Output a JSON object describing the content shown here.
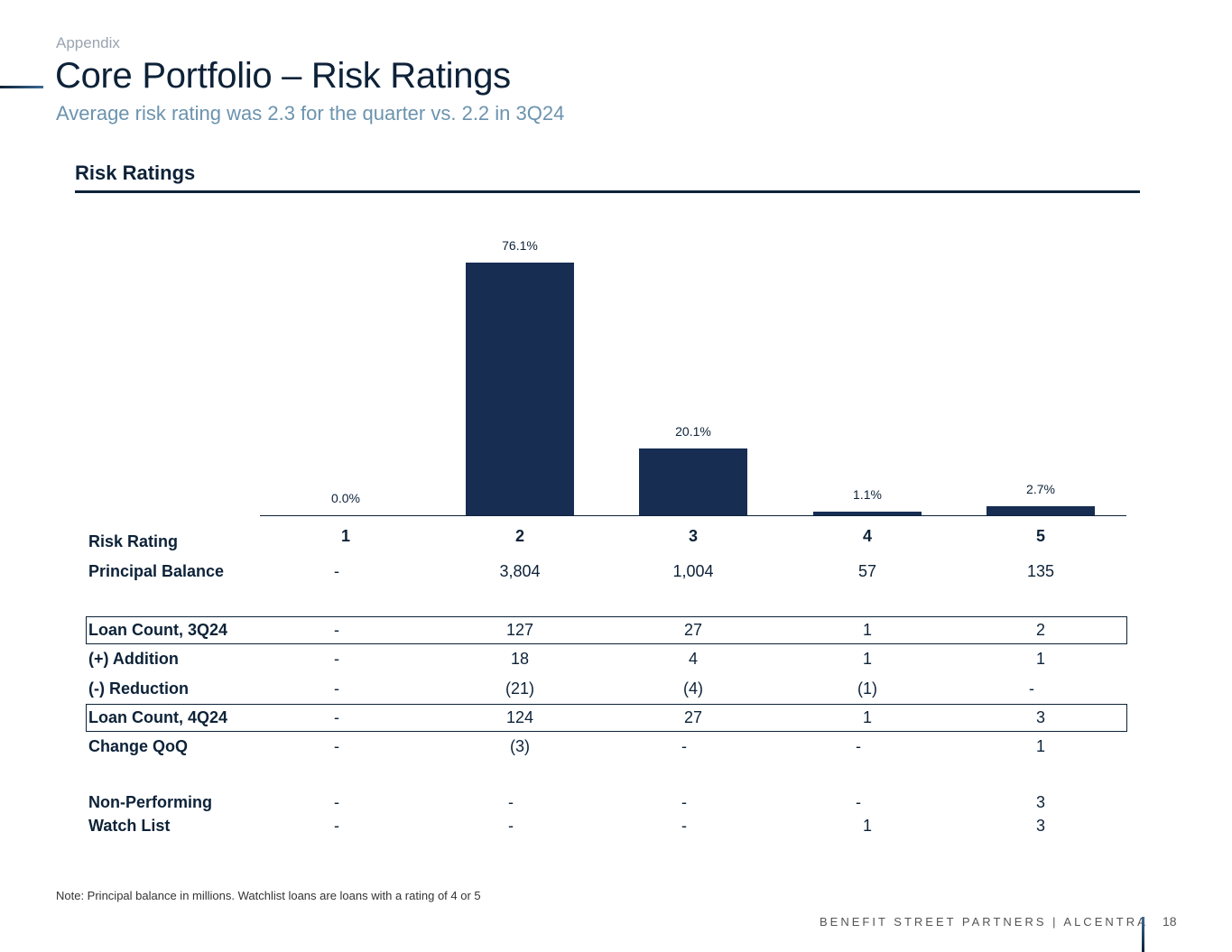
{
  "header": {
    "appendix": "Appendix",
    "title": "Core Portfolio – Risk Ratings",
    "subtitle": "Average risk rating was 2.3 for the quarter vs. 2.2 in 3Q24"
  },
  "section_title": "Risk Ratings",
  "chart_data": {
    "type": "bar",
    "title": "Risk Ratings",
    "categories": [
      "1",
      "2",
      "3",
      "4",
      "5"
    ],
    "values": [
      0.0,
      76.1,
      20.1,
      1.1,
      2.7
    ],
    "labels": [
      "0.0%",
      "76.1%",
      "20.1%",
      "1.1%",
      "2.7%"
    ],
    "unit": "%",
    "ylim": [
      0,
      80
    ],
    "colors": {
      "bar": "#172d52"
    }
  },
  "table": {
    "rows": [
      {
        "label": "Risk Rating",
        "values": [
          "1",
          "2",
          "3",
          "4",
          "5"
        ]
      },
      {
        "label": "Principal Balance",
        "values": [
          "-",
          "3,804",
          "1,004",
          "57",
          "135"
        ]
      },
      {
        "label": "Loan Count, 3Q24",
        "values": [
          "-",
          "127",
          "27",
          "1",
          "2"
        ]
      },
      {
        "label": "(+) Addition",
        "values": [
          "-",
          "18",
          "4",
          "1",
          "1"
        ]
      },
      {
        "label": "(-) Reduction",
        "values": [
          "-",
          "(21)",
          "(4)",
          "(1)",
          "-"
        ]
      },
      {
        "label": "Loan Count, 4Q24",
        "values": [
          "-",
          "124",
          "27",
          "1",
          "3"
        ]
      },
      {
        "label": "Change QoQ",
        "values": [
          "-",
          "(3)",
          "-",
          "-",
          "1"
        ]
      },
      {
        "label": "Non-Performing",
        "values": [
          "-",
          "-",
          "-",
          "-",
          "3"
        ]
      },
      {
        "label": "Watch List",
        "values": [
          "-",
          "-",
          "-",
          "1",
          "3"
        ]
      }
    ]
  },
  "note": "Note: Principal balance in millions. Watchlist loans are loans with a rating of 4 or 5",
  "footer": {
    "brand": "BENEFIT STREET PARTNERS | ALCENTRA",
    "page": "18"
  }
}
